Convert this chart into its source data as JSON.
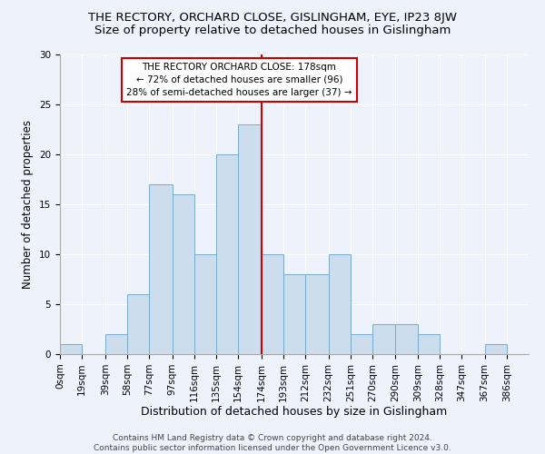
{
  "title1": "THE RECTORY, ORCHARD CLOSE, GISLINGHAM, EYE, IP23 8JW",
  "title2": "Size of property relative to detached houses in Gislingham",
  "xlabel": "Distribution of detached houses by size in Gislingham",
  "ylabel": "Number of detached properties",
  "footer1": "Contains HM Land Registry data © Crown copyright and database right 2024.",
  "footer2": "Contains public sector information licensed under the Open Government Licence v3.0.",
  "bin_labels": [
    "0sqm",
    "19sqm",
    "39sqm",
    "58sqm",
    "77sqm",
    "97sqm",
    "116sqm",
    "135sqm",
    "154sqm",
    "174sqm",
    "193sqm",
    "212sqm",
    "232sqm",
    "251sqm",
    "270sqm",
    "290sqm",
    "309sqm",
    "328sqm",
    "347sqm",
    "367sqm",
    "386sqm"
  ],
  "bar_heights": [
    1,
    0,
    2,
    6,
    17,
    16,
    10,
    20,
    23,
    10,
    8,
    8,
    10,
    2,
    3,
    3,
    2,
    0,
    0,
    1,
    0
  ],
  "bin_edges": [
    0,
    19,
    39,
    58,
    77,
    97,
    116,
    135,
    154,
    174,
    193,
    212,
    232,
    251,
    270,
    290,
    309,
    328,
    347,
    367,
    386,
    405
  ],
  "bar_color": "#ccdded",
  "bar_edge_color": "#7aabcc",
  "vline_x": 174,
  "vline_color": "#cc0000",
  "annotation_box_color": "#cc0000",
  "annotation_text_line1": "THE RECTORY ORCHARD CLOSE: 178sqm",
  "annotation_text_line2": "← 72% of detached houses are smaller (96)",
  "annotation_text_line3": "28% of semi-detached houses are larger (37) →",
  "ylim": [
    0,
    30
  ],
  "yticks": [
    0,
    5,
    10,
    15,
    20,
    25,
    30
  ],
  "background_color": "#eef2fb",
  "grid_color": "#ffffff",
  "title1_fontsize": 9.5,
  "title2_fontsize": 9.5,
  "xlabel_fontsize": 9,
  "ylabel_fontsize": 8.5,
  "tick_fontsize": 7.5,
  "footer_fontsize": 6.5,
  "annot_fontsize": 7.5
}
